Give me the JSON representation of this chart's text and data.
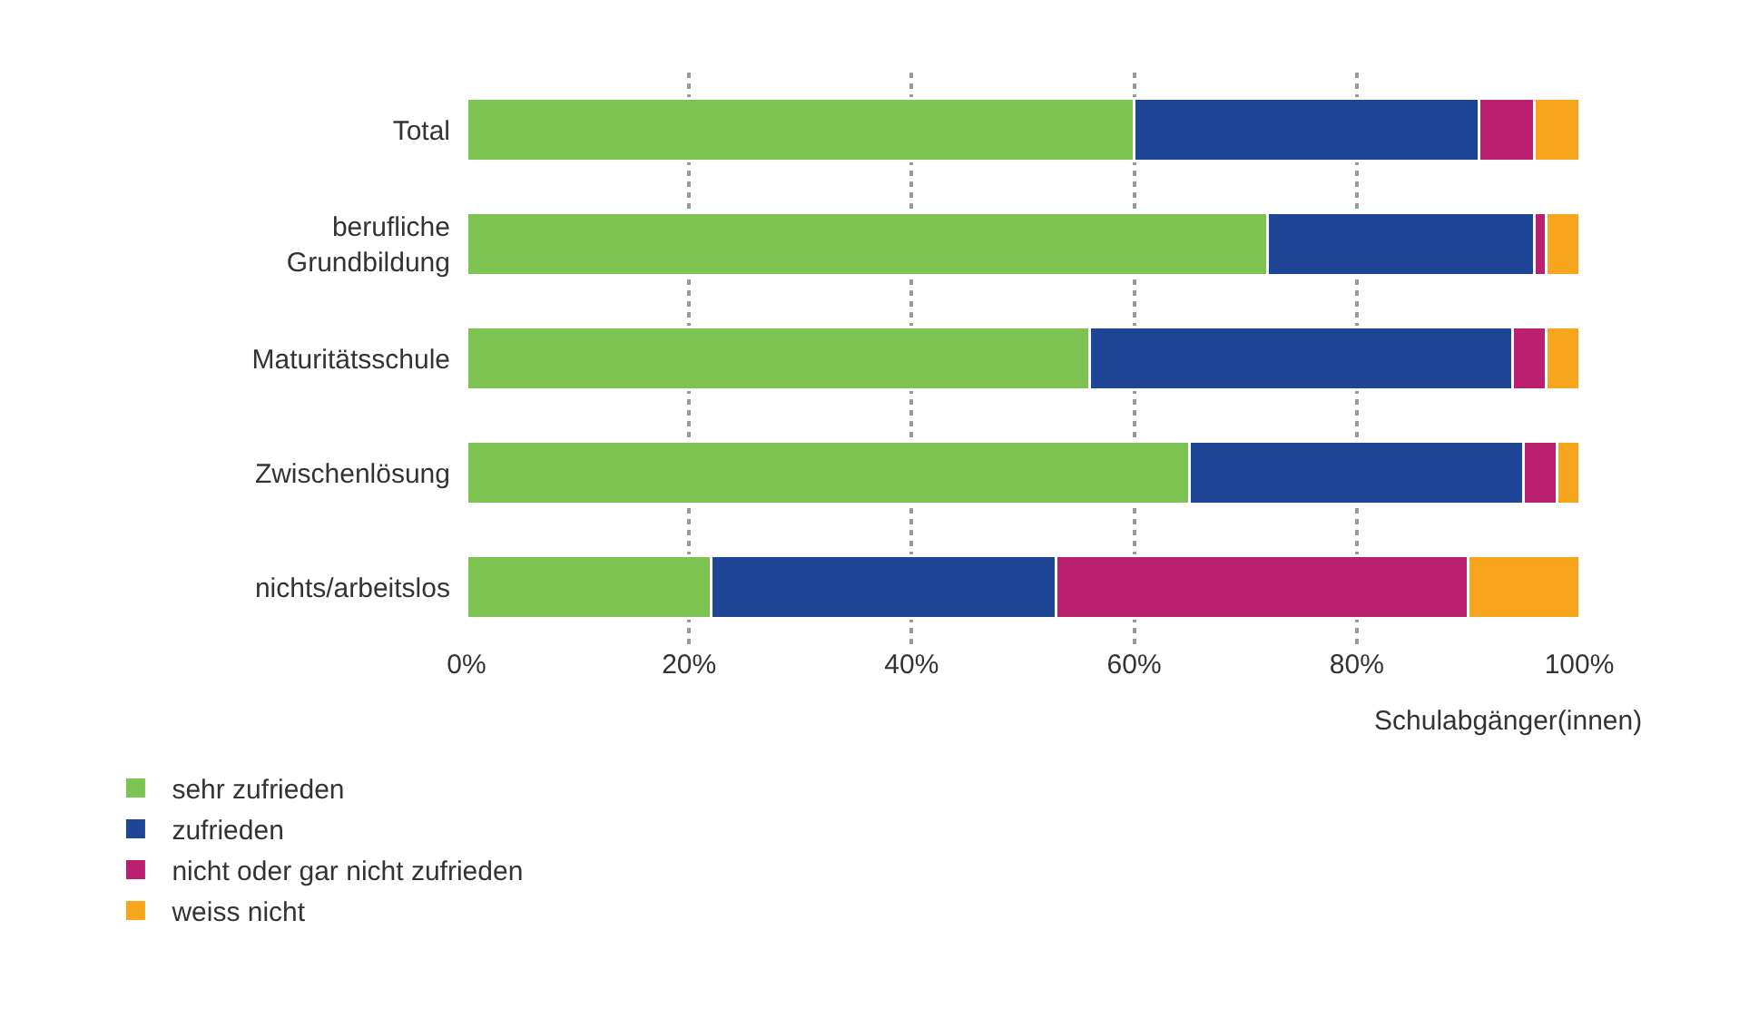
{
  "chart_data": {
    "type": "bar",
    "orientation": "horizontal",
    "stacked": true,
    "categories": [
      "Total",
      "berufliche\nGrundbildung",
      "Maturitätsschule",
      "Zwischenlösung",
      "nichts/arbeitslos"
    ],
    "series": [
      {
        "name": "sehr zufrieden",
        "color": "#7dc352",
        "values": [
          60,
          72,
          56,
          65,
          22
        ]
      },
      {
        "name": "zufrieden",
        "color": "#1f4696",
        "values": [
          31,
          24,
          38,
          30,
          31
        ]
      },
      {
        "name": "nicht oder gar nicht zufrieden",
        "color": "#bb1f70",
        "values": [
          5,
          1,
          3,
          3,
          37
        ]
      },
      {
        "name": "weiss nicht",
        "color": "#f7a51c",
        "values": [
          4,
          3,
          3,
          2,
          10
        ]
      }
    ],
    "xlabel": "Schulabgänger(innen)",
    "xlim": [
      0,
      100
    ],
    "xticks": [
      {
        "value": 0,
        "label": "0%"
      },
      {
        "value": 20,
        "label": "20%"
      },
      {
        "value": 40,
        "label": "40%"
      },
      {
        "value": 60,
        "label": "60%"
      },
      {
        "value": 80,
        "label": "80%"
      },
      {
        "value": 100,
        "label": "100%"
      }
    ],
    "grid": "x",
    "legend": "bottom left"
  }
}
